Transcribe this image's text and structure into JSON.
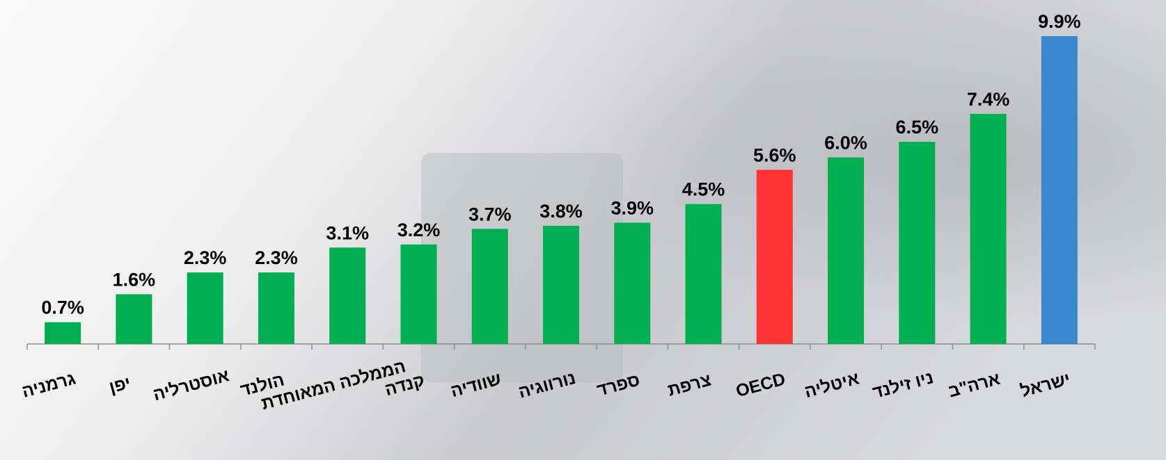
{
  "chart_data": {
    "type": "bar",
    "categories": [
      "גרמניה",
      "יפן",
      "אוסטרליה",
      "הולנד",
      "הממלכה המאוחדת",
      "קנדה",
      "שוודיה",
      "נורווגיה",
      "ספרד",
      "צרפת",
      "OECD",
      "איטליה",
      "ניו זילנד",
      "ארה\"ב",
      "ישראל"
    ],
    "values": [
      0.7,
      1.6,
      2.3,
      2.3,
      3.1,
      3.2,
      3.7,
      3.8,
      3.9,
      4.5,
      5.6,
      6.0,
      6.5,
      7.4,
      9.9
    ],
    "value_labels": [
      "0.7%",
      "1.6%",
      "2.3%",
      "2.3%",
      "3.1%",
      "3.2%",
      "3.7%",
      "3.8%",
      "3.9%",
      "4.5%",
      "5.6%",
      "6.0%",
      "6.5%",
      "7.4%",
      "9.9%"
    ],
    "colors": [
      "#00b050",
      "#00b050",
      "#00b050",
      "#00b050",
      "#00b050",
      "#00b050",
      "#00b050",
      "#00b050",
      "#00b050",
      "#00b050",
      "#ff3333",
      "#00b050",
      "#00b050",
      "#00b050",
      "#3a87d0"
    ]
  }
}
